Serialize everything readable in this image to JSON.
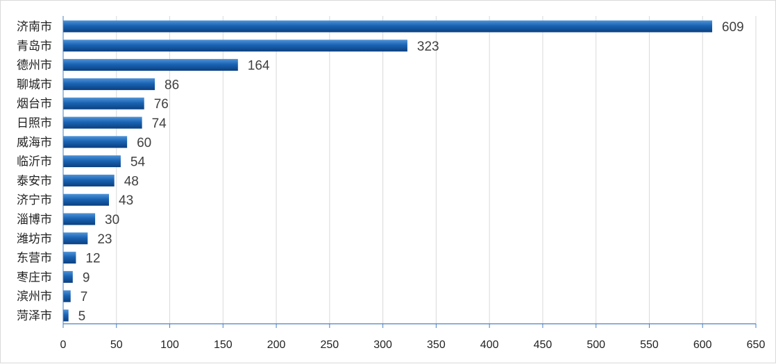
{
  "chart_data": {
    "type": "bar",
    "orientation": "horizontal",
    "title": "",
    "xlabel": "",
    "ylabel": "",
    "categories": [
      "济南市",
      "青岛市",
      "德州市",
      "聊城市",
      "烟台市",
      "日照市",
      "威海市",
      "临沂市",
      "泰安市",
      "济宁市",
      "淄博市",
      "潍坊市",
      "东营市",
      "枣庄市",
      "滨州市",
      "菏泽市"
    ],
    "values": [
      609,
      323,
      164,
      86,
      76,
      74,
      60,
      54,
      48,
      43,
      30,
      23,
      12,
      9,
      7,
      5
    ],
    "xlim": [
      0,
      650
    ],
    "x_ticks": [
      "0",
      "50",
      "100",
      "150",
      "200",
      "250",
      "300",
      "350",
      "400",
      "450",
      "500",
      "550",
      "600",
      "650"
    ],
    "grid": "vertical",
    "legend": "none",
    "colors": {
      "bar_light": "#4f93d8",
      "bar_mid": "#1a64b4",
      "bar_dark": "#0b3f80",
      "grid": "#d9d9d9",
      "axis": "#4a7fc0"
    }
  }
}
